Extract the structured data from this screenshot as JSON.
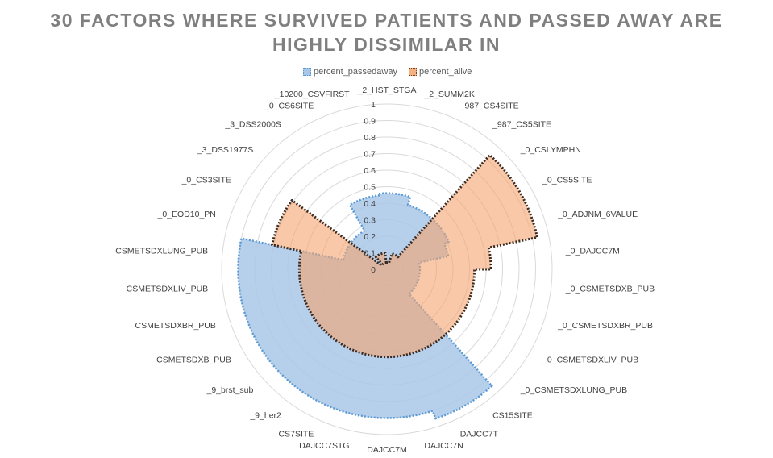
{
  "title_line1": "30 FACTORS WHERE SURVIVED PATIENTS AND PASSED AWAY ARE",
  "title_line2": "HIGHLY DISSIMILAR IN",
  "chart_data": {
    "type": "radar",
    "title": "30 FACTORS WHERE SURVIVED PATIENTS AND PASSED AWAY ARE HIGHLY DISSIMILAR IN",
    "rlim": [
      0,
      1
    ],
    "ticks": [
      "0",
      "0.1",
      "0.2",
      "0.3",
      "0.4",
      "0.5",
      "0.6",
      "0.7",
      "0.8",
      "0.9",
      "1"
    ],
    "grid": true,
    "legend_position": "top",
    "categories": [
      "_2_HST_STGA",
      "_2_SUMM2K",
      "_987_CS4SITE",
      "_987_CS5SITE",
      "_0_CSLYMPHN",
      "_0_CS5SITE",
      "_0_ADJNM_6VALUE",
      "_0_DAJCC7M",
      "_0_CSMETSDXB_PUB",
      "_0_CSMETSDXBR_PUB",
      "_0_CSMETSDXLIV_PUB",
      "_0_CSMETSDXLUNG_PUB",
      "CS15SITE",
      "DAJCC7T",
      "DAJCC7N",
      "DAJCC7M",
      "DAJCC7STG",
      "CS7SITE",
      "_9_her2",
      "_9_brst_sub",
      "CSMETSDXB_PUB",
      "CSMETSDXBR_PUB",
      "CSMETSDXLIV_PUB",
      "CSMETSDXLUNG_PUB",
      "_0_EOD10_PN",
      "_0_CS3SITE",
      "_3_DSS1977S",
      "_3_DSS2000S",
      "_0_CS6SITE",
      "_10200_CSVFIRST"
    ],
    "series": [
      {
        "name": "percent_passedaway",
        "color": "#5b9bd5",
        "values": [
          0.46,
          0.46,
          0.41,
          0.41,
          0.41,
          0.41,
          0.38,
          0.2,
          0.2,
          0.2,
          0.2,
          0.2,
          0.95,
          0.95,
          0.9,
          0.9,
          0.9,
          0.9,
          0.9,
          0.9,
          0.9,
          0.9,
          0.9,
          0.9,
          0.27,
          0.27,
          0.27,
          0.27,
          0.45,
          0.45
        ]
      },
      {
        "name": "percent_alive",
        "color": "#ed7d31",
        "values": [
          0.04,
          0.04,
          0.1,
          0.1,
          0.93,
          0.93,
          0.93,
          0.63,
          0.53,
          0.53,
          0.53,
          0.53,
          0.53,
          0.53,
          0.53,
          0.53,
          0.53,
          0.53,
          0.53,
          0.53,
          0.53,
          0.53,
          0.53,
          0.53,
          0.71,
          0.71,
          0.04,
          0.1,
          0.1,
          0.1
        ]
      }
    ]
  }
}
